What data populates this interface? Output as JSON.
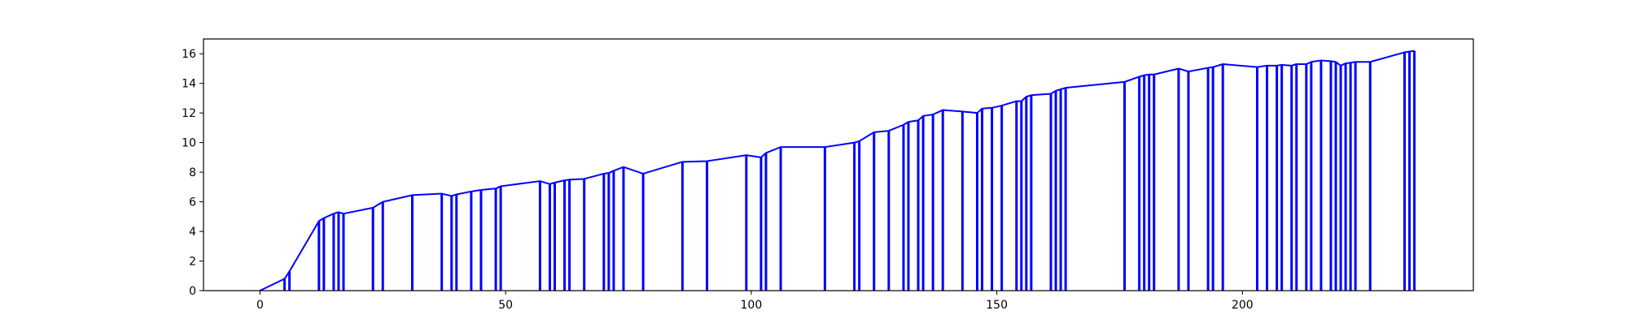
{
  "chart_data": {
    "type": "line",
    "title": "",
    "xlabel": "",
    "ylabel": "",
    "xlim": [
      -11.5,
      247
    ],
    "ylim": [
      0,
      17
    ],
    "x_ticks": [
      0,
      50,
      100,
      150,
      200
    ],
    "y_ticks": [
      0,
      2,
      4,
      6,
      8,
      10,
      12,
      14,
      16
    ],
    "grid": false,
    "legend": "none",
    "series": [
      {
        "color": "#0000ff",
        "points": [
          [
            0,
            0
          ],
          [
            5,
            0.8
          ],
          [
            6,
            1.3
          ],
          [
            12,
            4.7
          ],
          [
            13,
            4.9
          ],
          [
            15,
            5.2
          ],
          [
            16,
            5.3
          ],
          [
            17,
            5.2
          ],
          [
            23,
            5.6
          ],
          [
            25,
            6.0
          ],
          [
            31,
            6.45
          ],
          [
            37,
            6.55
          ],
          [
            39,
            6.4
          ],
          [
            40,
            6.5
          ],
          [
            43,
            6.7
          ],
          [
            45,
            6.8
          ],
          [
            48,
            6.9
          ],
          [
            49,
            7.05
          ],
          [
            57,
            7.4
          ],
          [
            59,
            7.2
          ],
          [
            60,
            7.3
          ],
          [
            62,
            7.45
          ],
          [
            63,
            7.5
          ],
          [
            66,
            7.55
          ],
          [
            70,
            7.9
          ],
          [
            71,
            7.95
          ],
          [
            72,
            8.1
          ],
          [
            74,
            8.35
          ],
          [
            78,
            7.9
          ],
          [
            86,
            8.7
          ],
          [
            91,
            8.75
          ],
          [
            99,
            9.15
          ],
          [
            102,
            9.0
          ],
          [
            103,
            9.3
          ],
          [
            106,
            9.7
          ],
          [
            115,
            9.7
          ],
          [
            121,
            10.0
          ],
          [
            122,
            10.1
          ],
          [
            125,
            10.7
          ],
          [
            128,
            10.8
          ],
          [
            131,
            11.2
          ],
          [
            132,
            11.4
          ],
          [
            134,
            11.5
          ],
          [
            135,
            11.8
          ],
          [
            137,
            11.9
          ],
          [
            139,
            12.2
          ],
          [
            143,
            12.1
          ],
          [
            146,
            12.0
          ],
          [
            147,
            12.3
          ],
          [
            149,
            12.35
          ],
          [
            151,
            12.5
          ],
          [
            154,
            12.8
          ],
          [
            155,
            12.8
          ],
          [
            156,
            13.1
          ],
          [
            157,
            13.2
          ],
          [
            161,
            13.3
          ],
          [
            162,
            13.5
          ],
          [
            163,
            13.6
          ],
          [
            164,
            13.7
          ],
          [
            176,
            14.1
          ],
          [
            179,
            14.45
          ],
          [
            180,
            14.55
          ],
          [
            181,
            14.6
          ],
          [
            182,
            14.6
          ],
          [
            187,
            15.0
          ],
          [
            189,
            14.8
          ],
          [
            193,
            15.05
          ],
          [
            194,
            15.1
          ],
          [
            196,
            15.3
          ],
          [
            203,
            15.1
          ],
          [
            205,
            15.2
          ],
          [
            207,
            15.2
          ],
          [
            208,
            15.25
          ],
          [
            210,
            15.2
          ],
          [
            211,
            15.3
          ],
          [
            213,
            15.3
          ],
          [
            214,
            15.45
          ],
          [
            216,
            15.55
          ],
          [
            218,
            15.5
          ],
          [
            219,
            15.45
          ],
          [
            220,
            15.2
          ],
          [
            221,
            15.35
          ],
          [
            222,
            15.4
          ],
          [
            223,
            15.45
          ],
          [
            226,
            15.45
          ],
          [
            233,
            16.1
          ],
          [
            234,
            16.15
          ],
          [
            235,
            16.2
          ]
        ]
      }
    ]
  }
}
